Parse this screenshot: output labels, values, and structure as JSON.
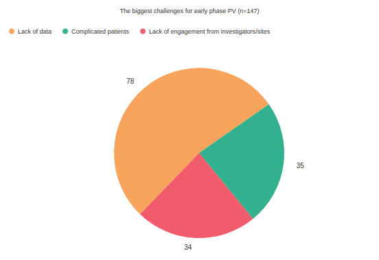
{
  "chart_data": {
    "type": "pie",
    "title": "The biggest challenges for early phase PV (n=147)",
    "categories": [
      "Lack of data",
      "Complicated patients",
      "Lack of engagement from investigators/sites"
    ],
    "values": [
      78,
      35,
      34
    ],
    "colors": [
      "#f9a45c",
      "#33b08d",
      "#f05c6b"
    ],
    "data_labels": true,
    "legend": "top-left"
  }
}
